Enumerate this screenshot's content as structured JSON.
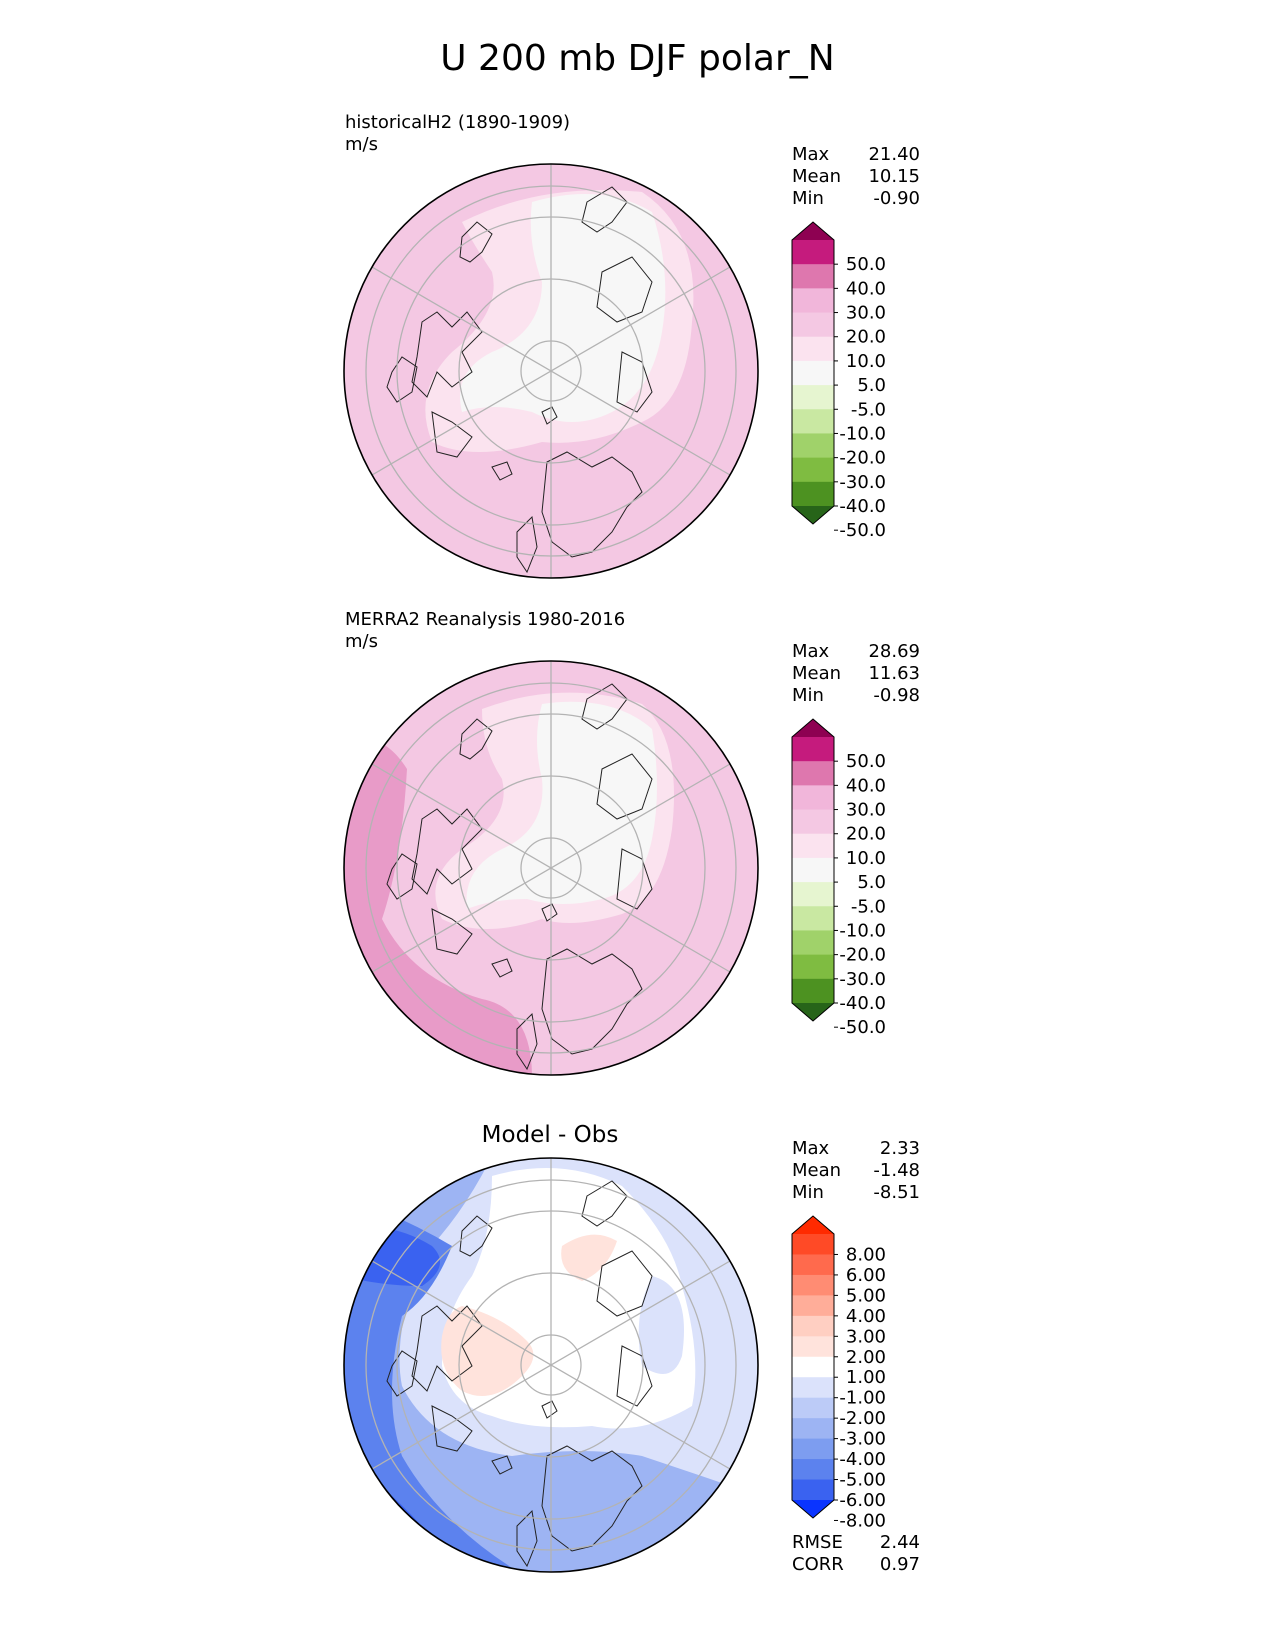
{
  "title": "U 200 mb DJF polar_N",
  "panels": [
    {
      "id": "model",
      "title_lines": [
        "historicalH2 (1890-1909)",
        "m/s"
      ],
      "stats": [
        {
          "label": "Max",
          "value": "21.40"
        },
        {
          "label": "Mean",
          "value": "10.15"
        },
        {
          "label": "Min",
          "value": "-0.90"
        }
      ]
    },
    {
      "id": "obs",
      "title_lines": [
        "MERRA2 Reanalysis 1980-2016",
        "m/s"
      ],
      "stats": [
        {
          "label": "Max",
          "value": "28.69"
        },
        {
          "label": "Mean",
          "value": "11.63"
        },
        {
          "label": "Min",
          "value": "-0.98"
        }
      ]
    },
    {
      "id": "diff",
      "title": "Model - Obs",
      "stats": [
        {
          "label": "Max",
          "value": "2.33"
        },
        {
          "label": "Mean",
          "value": "-1.48"
        },
        {
          "label": "Min",
          "value": "-8.51"
        }
      ],
      "extra_stats": [
        {
          "label": "RMSE",
          "value": "2.44"
        },
        {
          "label": "CORR",
          "value": "0.97"
        }
      ]
    }
  ],
  "chart_data": [
    {
      "type": "heatmap",
      "title": "historicalH2 (1890-1909)",
      "units": "m/s",
      "colorbar": {
        "tick_labels": [
          "50.0",
          "40.0",
          "30.0",
          "20.0",
          "10.0",
          "5.0",
          "-5.0",
          "-10.0",
          "-20.0",
          "-30.0",
          "-40.0",
          "-50.0"
        ],
        "colors": [
          "#8e0152",
          "#c51b7d",
          "#de77ae",
          "#f1b6da",
          "#f4c8e3",
          "#fbe3ef",
          "#f7f7f7",
          "#e6f5d0",
          "#c9e8a2",
          "#a0d26a",
          "#7fbc41",
          "#4d9221",
          "#276419"
        ]
      },
      "stats": {
        "max": 21.4,
        "mean": 10.15,
        "min": -0.9
      }
    },
    {
      "type": "heatmap",
      "title": "MERRA2 Reanalysis 1980-2016",
      "units": "m/s",
      "colorbar": {
        "tick_labels": [
          "50.0",
          "40.0",
          "30.0",
          "20.0",
          "10.0",
          "5.0",
          "-5.0",
          "-10.0",
          "-20.0",
          "-30.0",
          "-40.0",
          "-50.0"
        ],
        "colors": [
          "#8e0152",
          "#c51b7d",
          "#de77ae",
          "#f1b6da",
          "#f4c8e3",
          "#fbe3ef",
          "#f7f7f7",
          "#e6f5d0",
          "#c9e8a2",
          "#a0d26a",
          "#7fbc41",
          "#4d9221",
          "#276419"
        ]
      },
      "stats": {
        "max": 28.69,
        "mean": 11.63,
        "min": -0.98
      }
    },
    {
      "type": "heatmap",
      "title": "Model - Obs",
      "colorbar": {
        "tick_labels": [
          "8.00",
          "6.00",
          "5.00",
          "4.00",
          "3.00",
          "2.00",
          "1.00",
          "-1.00",
          "-2.00",
          "-3.00",
          "-4.00",
          "-5.00",
          "-6.00",
          "-8.00"
        ],
        "colors": [
          "#ff2a00",
          "#ff4a26",
          "#ff6a4d",
          "#ff8c73",
          "#ffad99",
          "#ffcfc2",
          "#ffe3dc",
          "#ffffff",
          "#dbe2fb",
          "#bccbf7",
          "#9db4f3",
          "#7d9df0",
          "#5c82ee",
          "#3a62f0",
          "#0a34ff"
        ]
      },
      "stats": {
        "max": 2.33,
        "mean": -1.48,
        "min": -8.51,
        "rmse": 2.44,
        "corr": 0.97
      }
    }
  ]
}
